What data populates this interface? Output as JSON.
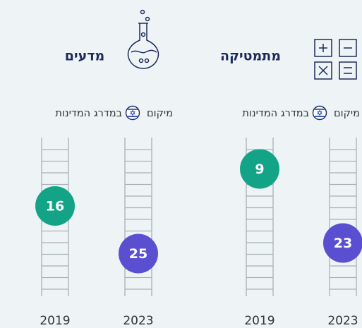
{
  "panels": [
    {
      "title": "מתמטיקה",
      "subtitle_start": "מיקום",
      "subtitle_end": "במדרג המדינות",
      "ranks": [
        {
          "year": "2019",
          "rank": 9
        },
        {
          "year": "2023",
          "rank": 23
        }
      ]
    },
    {
      "title": "מדעים",
      "subtitle_start": "מיקום",
      "subtitle_end": "במדרג המדינות",
      "ranks": [
        {
          "year": "2019",
          "rank": 16
        },
        {
          "year": "2023",
          "rank": 25
        }
      ]
    }
  ]
}
